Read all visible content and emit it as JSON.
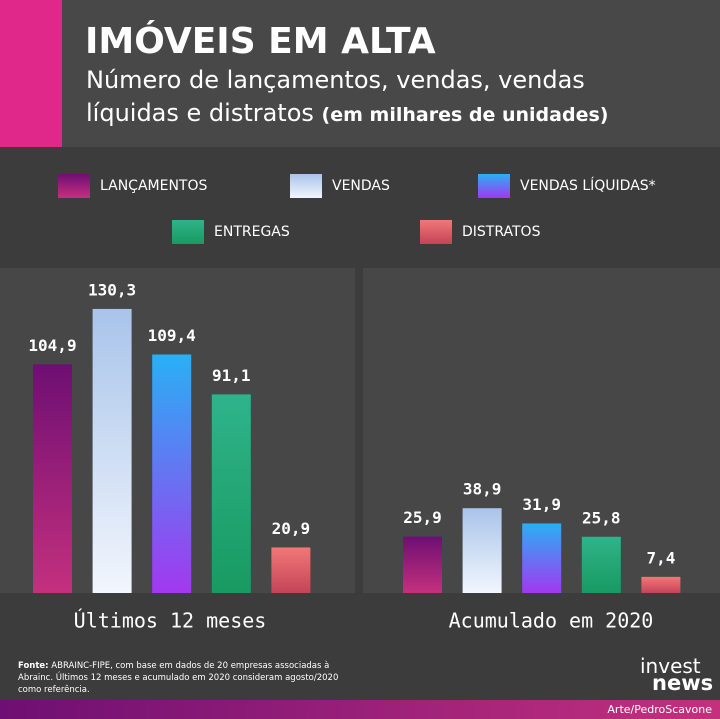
{
  "chart_data": {
    "type": "bar",
    "title": "IMÓVEIS EM ALTA",
    "subtitle": "Número de lançamentos, vendas, vendas líquidas e distratos",
    "subtitle_note": "(em milhares de unidades)",
    "categories": [
      "Últimos 12 meses",
      "Acumulado em 2020"
    ],
    "series": [
      {
        "name": "LANÇAMENTOS",
        "color": [
          "#6e0f73",
          "#c4307e"
        ],
        "values": [
          104.9,
          25.9
        ],
        "value_labels": [
          "104,9",
          "25,9"
        ]
      },
      {
        "name": "VENDAS",
        "color": [
          "#a9c4ea",
          "#f2f6fd"
        ],
        "values": [
          130.3,
          38.9
        ],
        "value_labels": [
          "130,3",
          "38,9"
        ]
      },
      {
        "name": "VENDAS LÍQUIDAS*",
        "color": [
          "#29b0f5",
          "#a238f0"
        ],
        "values": [
          109.4,
          31.9
        ],
        "value_labels": [
          "109,4",
          "31,9"
        ]
      },
      {
        "name": "ENTREGAS",
        "color": [
          "#2fb38a",
          "#199a62"
        ],
        "values": [
          91.1,
          25.8
        ],
        "value_labels": [
          "91,1",
          "25,8"
        ]
      },
      {
        "name": "DISTRATOS",
        "color": [
          "#f07878",
          "#c44458"
        ],
        "values": [
          20.9,
          7.4
        ],
        "value_labels": [
          "20,9",
          "7,4"
        ]
      }
    ],
    "source_label": "Fonte:",
    "source": "ABRAINC-FIPE, com base em dados de 20 empresas associadas à Abrainc. Últimos 12 meses e acumulado em 2020 consideram agosto/2020 como referência.",
    "logo": [
      "invest",
      "news"
    ],
    "credit": "Arte/PedroScavone"
  }
}
